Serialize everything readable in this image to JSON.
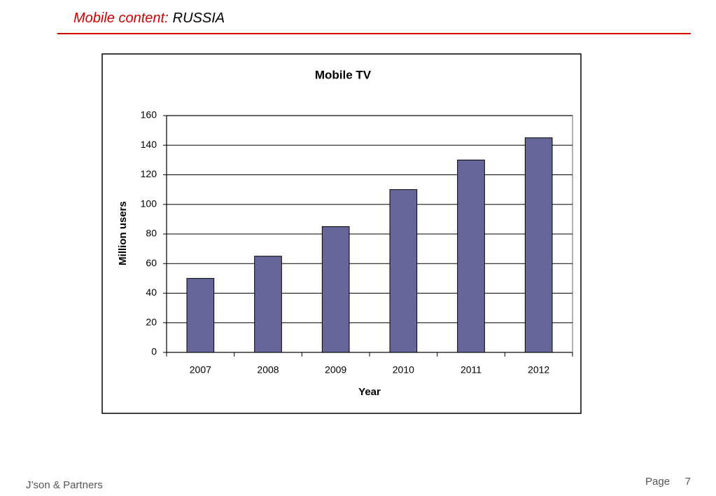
{
  "header": {
    "title": "Mobile content:",
    "subtitle": "RUSSIA"
  },
  "chart_data": {
    "type": "bar",
    "title": "Mobile TV",
    "x_label": "Year",
    "y_label": "Million users",
    "categories": [
      "2007",
      "2008",
      "2009",
      "2010",
      "2011",
      "2012"
    ],
    "values": [
      50,
      65,
      85,
      110,
      130,
      145
    ],
    "color": "#666699",
    "ylim": [
      0,
      160
    ],
    "yticks": [
      0,
      20,
      40,
      60,
      80,
      100,
      120,
      140,
      160
    ],
    "grid": true
  },
  "footer": {
    "company": "J’son & Partners",
    "page_label": "Page",
    "page_number": 7
  }
}
